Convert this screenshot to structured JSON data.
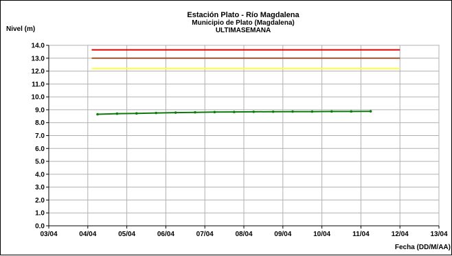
{
  "chart_data": {
    "type": "line",
    "title": "Estación Plato - Río Magdalena",
    "subtitle": "Municipio de Plato (Magdalena)",
    "subtitle2": "ULTIMASEMANA",
    "ylabel": "Nivel (m)",
    "xlabel": "Fecha (DD/M/AA)",
    "ylim": [
      0.0,
      14.0
    ],
    "ystep": 1.0,
    "x_tick_labels": [
      "03/04",
      "04/04",
      "05/04",
      "06/04",
      "07/04",
      "08/04",
      "09/04",
      "10/04",
      "11/04",
      "12/04",
      "13/04"
    ],
    "y_tick_labels": [
      "0.0",
      "1.0",
      "2.0",
      "3.0",
      "4.0",
      "5.0",
      "6.0",
      "7.0",
      "8.0",
      "9.0",
      "10.0",
      "11.0",
      "12.0",
      "13.0",
      "14.0"
    ],
    "grid": true,
    "threshold_lines": [
      {
        "color": "#e00000",
        "y": 13.65,
        "x_start": 1.1,
        "x_end": 9.0
      },
      {
        "color": "#a0522d",
        "y": 13.0,
        "x_start": 1.1,
        "x_end": 9.0
      },
      {
        "color": "#ffff40",
        "y": 12.2,
        "x_start": 1.1,
        "x_end": 9.0
      }
    ],
    "series": [
      {
        "color": "#0a7a0a",
        "x": [
          1.25,
          1.75,
          2.25,
          2.75,
          3.25,
          3.75,
          4.25,
          4.75,
          5.25,
          5.75,
          6.25,
          6.75,
          7.25,
          7.75,
          8.25
        ],
        "values": [
          8.65,
          8.7,
          8.72,
          8.75,
          8.78,
          8.8,
          8.82,
          8.83,
          8.84,
          8.85,
          8.86,
          8.86,
          8.87,
          8.87,
          8.88
        ]
      }
    ]
  }
}
